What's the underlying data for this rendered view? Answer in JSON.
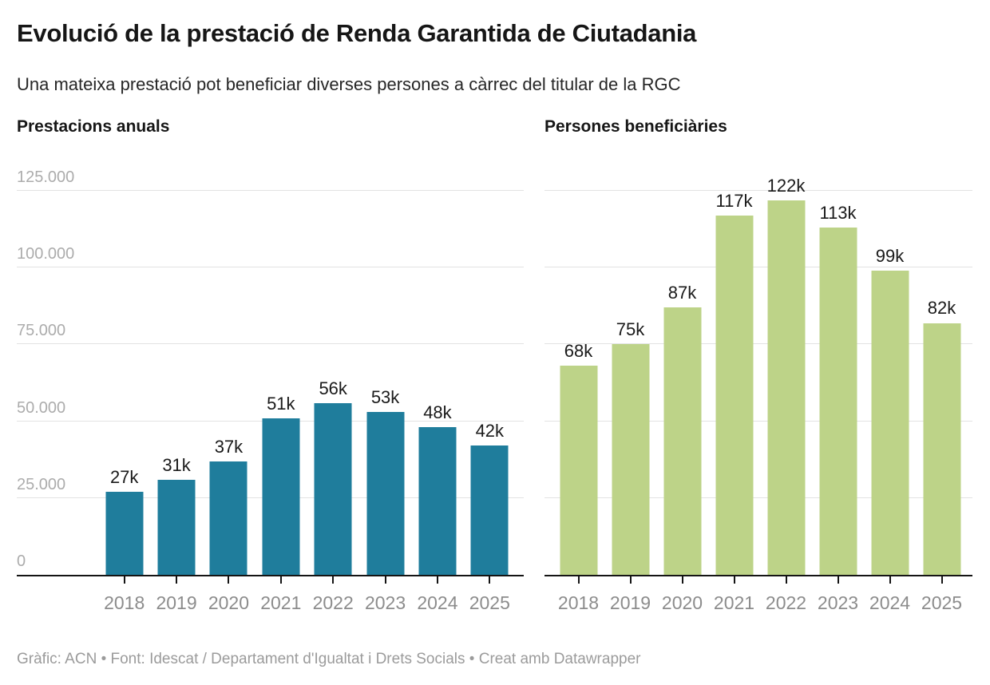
{
  "header": {
    "title": "Evolució de la prestació de Renda Garantida de Ciutadania",
    "subtitle": "Una mateixa prestació pot beneficiar diverses persones a càrrec del titular de la RGC"
  },
  "footer": {
    "text": "Gràfic: ACN • Font: Idescat / Departament d'Igualtat i Drets Socials • Creat amb Datawrapper"
  },
  "colors": {
    "left_bar": "#1f7d9c",
    "right_bar": "#bdd388",
    "gridline": "#e2e2e2",
    "axis_line": "#141414",
    "ytick_text": "#acacac",
    "xtick_text": "#8c8c8c",
    "value_label_text": "#1a1a1a"
  },
  "chart_data": [
    {
      "type": "bar",
      "title": "Prestacions anuals",
      "categories": [
        "2018",
        "2019",
        "2020",
        "2021",
        "2022",
        "2023",
        "2024",
        "2025"
      ],
      "values": [
        27000,
        31000,
        37000,
        51000,
        56000,
        53000,
        48000,
        42000
      ],
      "value_labels": [
        "27k",
        "31k",
        "37k",
        "51k",
        "56k",
        "53k",
        "48k",
        "42k"
      ],
      "bar_color": "#1f7d9c",
      "xlabel": "",
      "ylabel": "",
      "ylim": [
        0,
        125000
      ],
      "yticks": [
        125000,
        100000,
        75000,
        50000,
        25000,
        0
      ],
      "ytick_labels": [
        "125.000",
        "100.000",
        "75.000",
        "50.000",
        "25.000",
        "0"
      ],
      "show_ytick_labels": true,
      "grid": true,
      "legend": "none"
    },
    {
      "type": "bar",
      "title": "Persones beneficiàries",
      "categories": [
        "2018",
        "2019",
        "2020",
        "2021",
        "2022",
        "2023",
        "2024",
        "2025"
      ],
      "values": [
        68000,
        75000,
        87000,
        117000,
        122000,
        113000,
        99000,
        82000
      ],
      "value_labels": [
        "68k",
        "75k",
        "87k",
        "117k",
        "122k",
        "113k",
        "99k",
        "82k"
      ],
      "bar_color": "#bdd388",
      "xlabel": "",
      "ylabel": "",
      "ylim": [
        0,
        125000
      ],
      "yticks": [
        125000,
        100000,
        75000,
        50000,
        25000,
        0
      ],
      "ytick_labels": [
        "125.000",
        "100.000",
        "75.000",
        "50.000",
        "25.000",
        "0"
      ],
      "show_ytick_labels": false,
      "grid": true,
      "legend": "none"
    }
  ]
}
